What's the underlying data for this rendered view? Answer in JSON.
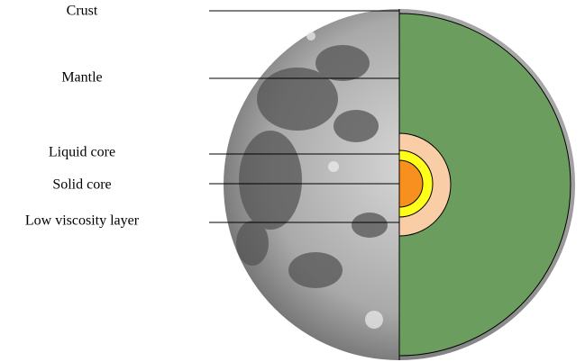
{
  "labels": [
    "Crust",
    "Mantle",
    "Liquid core",
    "Solid core",
    "Low viscosity layer"
  ]
}
